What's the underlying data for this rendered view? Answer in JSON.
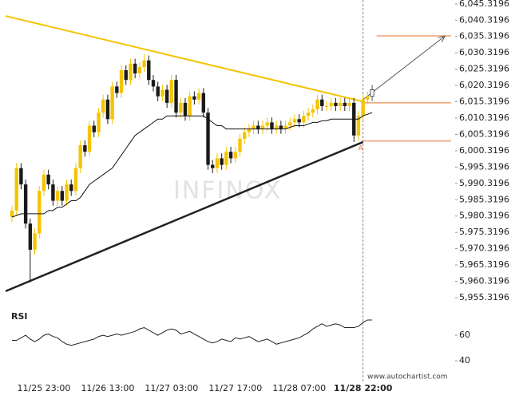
{
  "chart_data": {
    "type": "candlestick",
    "watermark": "INFINOX",
    "site": "www.autochartist.com",
    "annotation": "A",
    "current": 77,
    "xlim": [
      -1.4,
      97.2
    ],
    "xticks": [
      {
        "value": 7,
        "label": "11/25 23:00"
      },
      {
        "value": 21,
        "label": "11/26 13:00"
      },
      {
        "value": 35,
        "label": "11/27 03:00"
      },
      {
        "value": 49,
        "label": "11/27 17:00"
      },
      {
        "value": 63,
        "label": "11/28 07:00"
      },
      {
        "value": 77,
        "label": "11/28 22:00"
      }
    ],
    "ylim": [
      5953.6,
      6046.5
    ],
    "yticks": [
      {
        "value": 6045.3196,
        "label": "6,045.3196"
      },
      {
        "value": 6040.3196,
        "label": "6,040.3196"
      },
      {
        "value": 6035.3196,
        "label": "6,035.3196"
      },
      {
        "value": 6030.3196,
        "label": "6,030.3196"
      },
      {
        "value": 6025.3196,
        "label": "6,025.3196"
      },
      {
        "value": 6020.3196,
        "label": "6,020.3196"
      },
      {
        "value": 6015.3196,
        "label": "6,015.3196"
      },
      {
        "value": 6010.3196,
        "label": "6,010.3196"
      },
      {
        "value": 6005.3196,
        "label": "6,005.3196"
      },
      {
        "value": 6000.3196,
        "label": "6,000.3196"
      },
      {
        "value": 5995.3196,
        "label": "5,995.3196"
      },
      {
        "value": 5990.3196,
        "label": "5,990.3196"
      },
      {
        "value": 5985.3196,
        "label": "5,985.3196"
      },
      {
        "value": 5980.3196,
        "label": "5,980.3196"
      },
      {
        "value": 5975.3196,
        "label": "5,975.3196"
      },
      {
        "value": 5970.3196,
        "label": "5,970.3196"
      },
      {
        "value": 5965.3196,
        "label": "5,965.3196"
      },
      {
        "value": 5960.3196,
        "label": "5,960.3196"
      },
      {
        "value": 5955.3196,
        "label": "5,955.3196"
      }
    ],
    "up_color": "#f5c400",
    "down_color": "#1a1a1a",
    "open": [
      5980,
      5982,
      5995,
      5990,
      5978,
      5970,
      5975,
      5988,
      5993,
      5990,
      5985,
      5988,
      5985,
      5990,
      5988,
      5995,
      6002,
      6000,
      6008,
      6006,
      6012,
      6016,
      6010,
      6020,
      6018,
      6025,
      6022,
      6027,
      6024,
      6026,
      6028,
      6022,
      6020,
      6017,
      6019,
      6015,
      6022,
      6012,
      6015,
      6011,
      6017,
      6016,
      6018,
      6012,
      5996,
      5995,
      5998,
      5996,
      6000,
      5998,
      6000,
      6004,
      6006,
      6007,
      6008,
      6007,
      6008,
      6009,
      6007,
      6008,
      6007,
      6008,
      6009,
      6010,
      6009,
      6011,
      6012,
      6013,
      6016,
      6014,
      6014,
      6015,
      6014,
      6015,
      6014,
      6015,
      6005,
      6011,
      6016,
      6017
    ],
    "high": [
      5983.5,
      5996.5,
      5996.5,
      5991.5,
      5979.5,
      5976.5,
      5989.5,
      5994.5,
      5994.5,
      5991.5,
      5989.5,
      5989.5,
      5991.5,
      5991.5,
      5996.5,
      6003.5,
      6003.5,
      6009.5,
      6009.5,
      6013.5,
      6017.5,
      6017.5,
      6021.5,
      6021.5,
      6026.5,
      6026.5,
      6028.5,
      6028.5,
      6027.5,
      6030,
      6029.5,
      6023.5,
      6021.5,
      6020.5,
      6020.5,
      6023.5,
      6023.5,
      6016.5,
      6016.5,
      6018.5,
      6018.5,
      6019.5,
      6019.5,
      6013.5,
      5997.5,
      5999.5,
      5999.5,
      6001.5,
      6001.5,
      6001.5,
      6005.5,
      6007.5,
      6008.5,
      6009.5,
      6009.5,
      6009.5,
      6010.5,
      6010.5,
      6009.5,
      6009.5,
      6009.5,
      6010.5,
      6011.5,
      6011.5,
      6012.5,
      6013.5,
      6014.5,
      6017.5,
      6017.5,
      6015.5,
      6016.5,
      6016.5,
      6016.5,
      6016.5,
      6016.5,
      6016.5,
      6012.5,
      6017.5,
      6018.5,
      6020.5
    ],
    "low": [
      5978.5,
      5980.5,
      5988.5,
      5976.5,
      5960,
      5968.5,
      5973.5,
      5986.5,
      5988.5,
      5983.5,
      5983.5,
      5983.5,
      5983.5,
      5986.5,
      5986.5,
      5993.5,
      5998.5,
      5998.5,
      6004.5,
      6004.5,
      6010.5,
      6008.5,
      6008.5,
      6016.5,
      6016.5,
      6020.5,
      6020.5,
      6022.5,
      6022.5,
      6024.5,
      6020.5,
      6018.5,
      6015.5,
      6015.5,
      6013.5,
      6013.5,
      6010.5,
      6010.5,
      6009.5,
      6009.5,
      6014.5,
      6014.5,
      6010.5,
      5994.5,
      5993.5,
      5993.5,
      5994.5,
      5994.5,
      5996.5,
      5996.5,
      5998.5,
      6002.5,
      6004.5,
      6005.5,
      6005.5,
      6005.5,
      6006.5,
      6005.5,
      6005.5,
      6005.5,
      6005.5,
      6006.5,
      6007.5,
      6007.5,
      6007.5,
      6009.5,
      6010.5,
      6011.5,
      6012.5,
      6012.5,
      6012.5,
      6012.5,
      6012.5,
      6012.5,
      6012.5,
      6003,
      6003.5,
      6009.5,
      6014.5,
      6015.5
    ],
    "close": [
      5982,
      5995,
      5990,
      5978,
      5970,
      5975,
      5988,
      5993,
      5990,
      5985,
      5988,
      5985,
      5990,
      5988,
      5995,
      6002,
      6000,
      6008,
      6006,
      6012,
      6016,
      6010,
      6020,
      6018,
      6025,
      6022,
      6027,
      6024,
      6026,
      6028,
      6022,
      6020,
      6017,
      6019,
      6015,
      6022,
      6012,
      6015,
      6011,
      6017,
      6016,
      6018,
      6012,
      5996,
      5995,
      5998,
      5996,
      6000,
      5998,
      6000,
      6004,
      6006,
      6007,
      6008,
      6007,
      6008,
      6009,
      6007,
      6008,
      6007,
      6008,
      6009,
      6010,
      6009,
      6011,
      6012,
      6013,
      6016,
      6014,
      6014,
      6015,
      6014,
      6015,
      6014,
      6015,
      6005,
      6011,
      6016,
      6017,
      6019
    ],
    "ma": {
      "color": "#111",
      "values": [
        5980,
        5980.5,
        5981,
        5981,
        5981,
        5981,
        5981,
        5981,
        5982,
        5982,
        5983,
        5983,
        5984,
        5985,
        5985,
        5986,
        5988,
        5990,
        5991,
        5992,
        5993,
        5994,
        5995,
        5997,
        5999,
        6001,
        6003,
        6005,
        6006,
        6007,
        6008,
        6009,
        6010,
        6010,
        6011,
        6011,
        6011,
        6011,
        6011,
        6011,
        6011,
        6011,
        6011,
        6010,
        6009,
        6008,
        6008,
        6007,
        6007,
        6007,
        6007,
        6007,
        6007,
        6007,
        6007,
        6007,
        6007,
        6007,
        6007,
        6007,
        6007,
        6007.5,
        6008,
        6008,
        6008,
        6008.5,
        6009,
        6009,
        6009.5,
        6009.5,
        6010,
        6010,
        6010,
        6010,
        6010,
        6010,
        6010,
        6011,
        6011.5,
        6012
      ]
    },
    "resistance": {
      "color": "#f5c400",
      "x": [
        -1.4,
        77
      ],
      "values": [
        6041.6,
        6015.4
      ]
    },
    "support": {
      "color": "#222",
      "x": [
        -1.4,
        77
      ],
      "values": [
        5957.3,
        6003
      ]
    },
    "levels": {
      "color": "#e8742c",
      "values": [
        6035.5,
        6015,
        6003.3
      ]
    },
    "forecast": {
      "color": "#555",
      "x": [
        77,
        95
      ],
      "values": [
        6016,
        6035.5
      ]
    },
    "rsi": {
      "label": "RSI",
      "ylim": [
        30,
        82
      ],
      "yticks": [
        40,
        60
      ],
      "color": "#222",
      "values": [
        56,
        56,
        58,
        60,
        57,
        55,
        57,
        60,
        61,
        59,
        58,
        55,
        53,
        52,
        53,
        54,
        55,
        56,
        57,
        59,
        60,
        59,
        60,
        61,
        60,
        61,
        62,
        63,
        65,
        66,
        64,
        62,
        60,
        62,
        64,
        65,
        64,
        61,
        62,
        63,
        61,
        59,
        57,
        55,
        54,
        55,
        57,
        56,
        55,
        58,
        57,
        58,
        59,
        57,
        55,
        56,
        57,
        55,
        53,
        54,
        55,
        56,
        57,
        58,
        60,
        62,
        65,
        67,
        69,
        67,
        68,
        69,
        68,
        66,
        66,
        66,
        67,
        70,
        72,
        72
      ]
    }
  }
}
